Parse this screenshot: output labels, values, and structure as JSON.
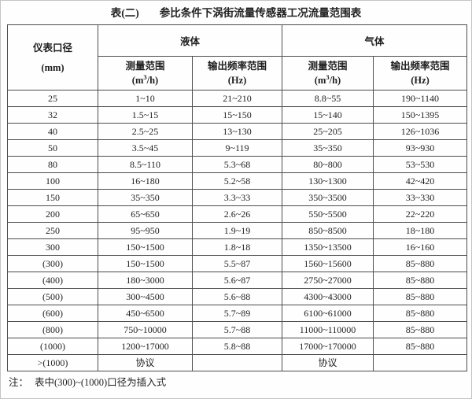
{
  "title": {
    "prefix": "表(二)",
    "text": "参比条件下涡街流量传感器工况流量范围表"
  },
  "table": {
    "col1_header": {
      "line1": "仪表口径",
      "line2": "(mm)"
    },
    "groups": [
      {
        "label": "液体"
      },
      {
        "label": "气体"
      }
    ],
    "subcols": [
      {
        "name": "测量范围",
        "unit": {
          "pre": "(m",
          "sup": "3",
          "post": "/h)"
        }
      },
      {
        "name": "输出频率范围",
        "unit": {
          "pre": "(Hz)",
          "sup": "",
          "post": ""
        }
      },
      {
        "name": "测量范围",
        "unit": {
          "pre": "(m",
          "sup": "3",
          "post": "/h)"
        }
      },
      {
        "name": "输出频率范围",
        "unit": {
          "pre": "(Hz)",
          "sup": "",
          "post": ""
        }
      }
    ],
    "rows": [
      [
        "25",
        "1~10",
        "21~210",
        "8.8~55",
        "190~1140"
      ],
      [
        "32",
        "1.5~15",
        "15~150",
        "15~140",
        "150~1395"
      ],
      [
        "40",
        "2.5~25",
        "13~130",
        "25~205",
        "126~1036"
      ],
      [
        "50",
        "3.5~45",
        "9~119",
        "35~350",
        "93~930"
      ],
      [
        "80",
        "8.5~110",
        "5.3~68",
        "80~800",
        "53~530"
      ],
      [
        "100",
        "16~180",
        "5.2~58",
        "130~1300",
        "42~420"
      ],
      [
        "150",
        "35~350",
        "3.3~33",
        "350~3500",
        "33~330"
      ],
      [
        "200",
        "65~650",
        "2.6~26",
        "550~5500",
        "22~220"
      ],
      [
        "250",
        "95~950",
        "1.9~19",
        "850~8500",
        "18~180"
      ],
      [
        "300",
        "150~1500",
        "1.8~18",
        "1350~13500",
        "16~160"
      ],
      [
        "(300)",
        "150~1500",
        "5.5~87",
        "1560~15600",
        "85~880"
      ],
      [
        "(400)",
        "180~3000",
        "5.6~87",
        "2750~27000",
        "85~880"
      ],
      [
        "(500)",
        "300~4500",
        "5.6~88",
        "4300~43000",
        "85~880"
      ],
      [
        "(600)",
        "450~6500",
        "5.7~89",
        "6100~61000",
        "85~880"
      ],
      [
        "(800)",
        "750~10000",
        "5.7~88",
        "11000~110000",
        "85~880"
      ],
      [
        "(1000)",
        "1200~17000",
        "5.8~88",
        "17000~170000",
        "85~880"
      ],
      [
        ">(1000)",
        "协议",
        "",
        "协议",
        ""
      ]
    ]
  },
  "note": {
    "label": "注：",
    "text": "表中(300)~(1000)口径为插入式"
  }
}
